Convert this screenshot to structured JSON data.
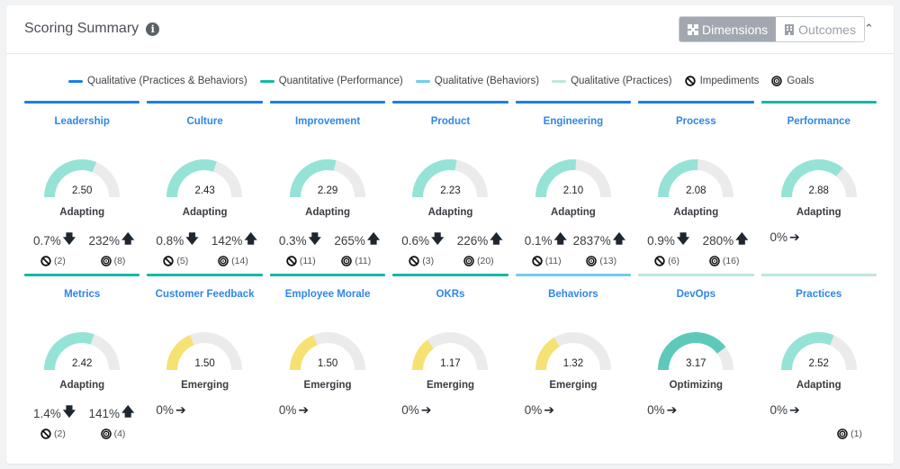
{
  "header": {
    "title": "Scoring Summary",
    "toggle": {
      "dimensions_label": "Dimensions",
      "outcomes_label": "Outcomes",
      "active": "Dimensions"
    }
  },
  "legend": [
    {
      "label": "Qualitative (Practices & Behaviors)",
      "color": "#1a7fe6"
    },
    {
      "label": "Quantitative (Performance)",
      "color": "#14b8a6"
    },
    {
      "label": "Qualitative (Behaviors)",
      "color": "#6fcdef"
    },
    {
      "label": "Qualitative (Practices)",
      "color": "#bfe6df"
    },
    {
      "label": "Impediments",
      "icon": "ban-icon"
    },
    {
      "label": "Goals",
      "icon": "target-icon"
    }
  ],
  "colors": {
    "adapting": "#95e3d6",
    "emerging": "#f6e173",
    "optimizing": "#5ec9bb",
    "track": "#ebebeb",
    "title": "#2f86e8"
  },
  "tiles": [
    {
      "title": "Leadership",
      "score": "2.50",
      "level": "Adapting",
      "bar": "#1a7fe6",
      "stat1": "0.7%",
      "arrow1": "down",
      "stat2": "232%",
      "arrow2": "up",
      "impediments": "(2)",
      "goals": "(8)"
    },
    {
      "title": "Culture",
      "score": "2.43",
      "level": "Adapting",
      "bar": "#1a7fe6",
      "stat1": "0.8%",
      "arrow1": "down",
      "stat2": "142%",
      "arrow2": "up",
      "impediments": "(5)",
      "goals": "(14)"
    },
    {
      "title": "Improvement",
      "score": "2.29",
      "level": "Adapting",
      "bar": "#1a7fe6",
      "stat1": "0.3%",
      "arrow1": "down",
      "stat2": "265%",
      "arrow2": "up",
      "impediments": "(11)",
      "goals": "(11)"
    },
    {
      "title": "Product",
      "score": "2.23",
      "level": "Adapting",
      "bar": "#1a7fe6",
      "stat1": "0.6%",
      "arrow1": "down",
      "stat2": "226%",
      "arrow2": "up",
      "impediments": "(3)",
      "goals": "(20)"
    },
    {
      "title": "Engineering",
      "score": "2.10",
      "level": "Adapting",
      "bar": "#1a7fe6",
      "stat1": "0.1%",
      "arrow1": "up",
      "stat2": "2837%",
      "arrow2": "up",
      "impediments": "(11)",
      "goals": "(13)"
    },
    {
      "title": "Process",
      "score": "2.08",
      "level": "Adapting",
      "bar": "#1a7fe6",
      "stat1": "0.9%",
      "arrow1": "down",
      "stat2": "280%",
      "arrow2": "up",
      "impediments": "(6)",
      "goals": "(16)"
    },
    {
      "title": "Performance",
      "score": "2.88",
      "level": "Adapting",
      "bar": "#14b8a6",
      "stat1": "0%",
      "arrow1": "right"
    },
    {
      "title": "Metrics",
      "score": "2.42",
      "level": "Adapting",
      "bar": "#14b8a6",
      "stat1": "1.4%",
      "arrow1": "down",
      "stat2": "141%",
      "arrow2": "up",
      "impediments": "(2)",
      "goals": "(4)"
    },
    {
      "title": "Customer Feedback",
      "score": "1.50",
      "level": "Emerging",
      "bar": "#14b8a6",
      "stat1": "0%",
      "arrow1": "right"
    },
    {
      "title": "Employee Morale",
      "score": "1.50",
      "level": "Emerging",
      "bar": "#14b8a6",
      "stat1": "0%",
      "arrow1": "right"
    },
    {
      "title": "OKRs",
      "score": "1.17",
      "level": "Emerging",
      "bar": "#14b8a6",
      "stat1": "0%",
      "arrow1": "right"
    },
    {
      "title": "Behaviors",
      "score": "1.32",
      "level": "Emerging",
      "bar": "#6fcdef",
      "stat1": "0%",
      "arrow1": "right"
    },
    {
      "title": "DevOps",
      "score": "3.17",
      "level": "Optimizing",
      "bar": "#bfe6df",
      "stat1": "0%",
      "arrow1": "right"
    },
    {
      "title": "Practices",
      "score": "2.52",
      "level": "Adapting",
      "bar": "#bfe6df",
      "stat1": "0%",
      "arrow1": "right",
      "goals": "(1)"
    }
  ]
}
